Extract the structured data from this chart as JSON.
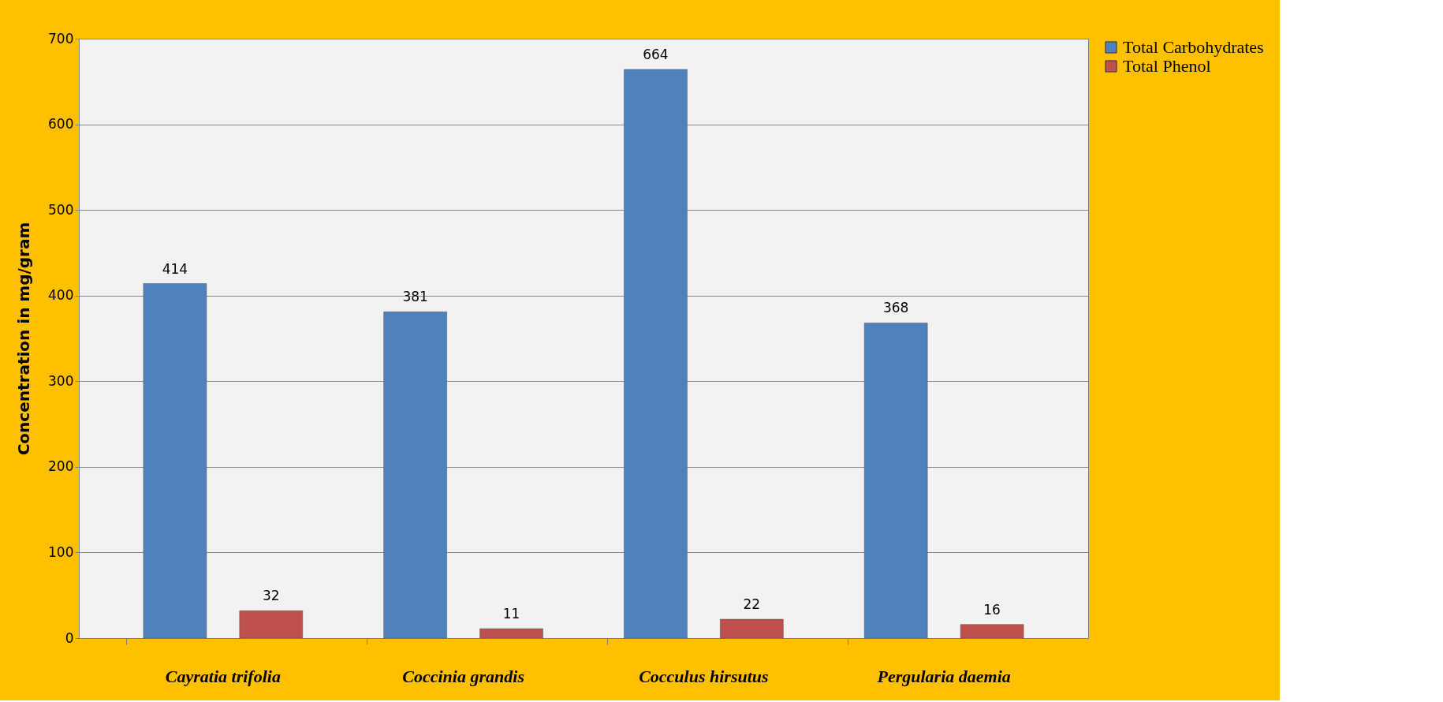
{
  "chart_data": {
    "type": "bar",
    "ylabel": "Concentration in mg/gram",
    "categories": [
      "Cayratia  trifolia",
      "Coccinia grandis",
      "Cocculus hirsutus",
      "Pergularia daemia"
    ],
    "series": [
      {
        "name": "Total Carbohydrates",
        "color": "#4f81bd",
        "values": [
          414,
          381,
          664,
          368
        ]
      },
      {
        "name": "Total Phenol",
        "color": "#c0504d",
        "values": [
          32,
          11,
          22,
          16
        ]
      }
    ],
    "ylim": [
      0,
      700
    ],
    "yticks": [
      0,
      100,
      200,
      300,
      400,
      500,
      600,
      700
    ],
    "grid": "y",
    "legend": "right",
    "data_labels": true
  }
}
